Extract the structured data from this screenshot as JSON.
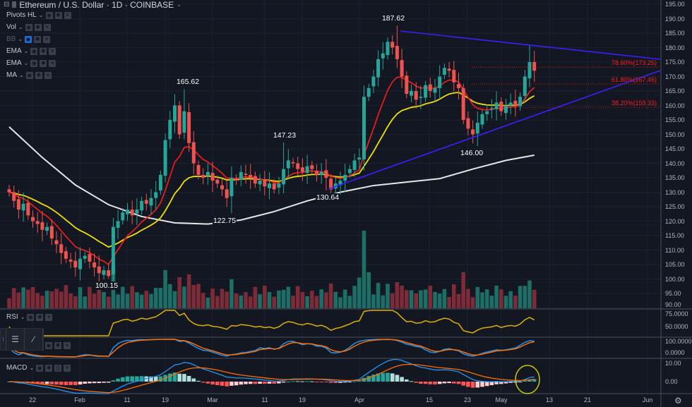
{
  "header": {
    "symbol_title": "Ethereum / U.S. Dollar · 1D · COINBASE",
    "indicators": [
      {
        "label": "Pivots HL",
        "hidden": false
      },
      {
        "label": "Vol",
        "hidden": false
      },
      {
        "label": "BB",
        "hidden": true
      },
      {
        "label": "EMA",
        "hidden": false
      },
      {
        "label": "EMA",
        "hidden": false
      },
      {
        "label": "MA",
        "hidden": false
      }
    ]
  },
  "panels": {
    "rsi_label": "RSI",
    "macd_label": "MACD"
  },
  "colors": {
    "background": "#131722",
    "up": "#26a69a",
    "down": "#ef5350",
    "ema_fast": "#e31e1e",
    "ema_slow": "#f0e000",
    "ma": "#e6e6e6",
    "trendline": "#3b1fff",
    "fib": "#ff1a1a",
    "highlight_circle": "#c8c800"
  },
  "chart_data": {
    "type": "candlestick",
    "start_date": "Jan 17",
    "closes": [
      130,
      127,
      124,
      126,
      122,
      120,
      119,
      117,
      118,
      114,
      112,
      109,
      107,
      106,
      104,
      107,
      108,
      106,
      104,
      102,
      103,
      101,
      118,
      120,
      123,
      124,
      122,
      124,
      127,
      126,
      128,
      130,
      136,
      148,
      155,
      160,
      150,
      158,
      147,
      140,
      136,
      135,
      137,
      134,
      133,
      131,
      128,
      135,
      134,
      137,
      136,
      135,
      133,
      134,
      132,
      133,
      131,
      133,
      138,
      141,
      140,
      138,
      137,
      139,
      138,
      136,
      137,
      135,
      131,
      133,
      134,
      136,
      138,
      141,
      142,
      163,
      166,
      170,
      176,
      178,
      182,
      180,
      176,
      170,
      164,
      165,
      162,
      163,
      167,
      165,
      166,
      170,
      173,
      172,
      168,
      166,
      155,
      152,
      150,
      154,
      157,
      158,
      159,
      161,
      158,
      160,
      161,
      160,
      163,
      170,
      175,
      172
    ],
    "ma_samples_every_7_days": [
      152.6,
      142,
      132.5,
      125.7,
      121.6,
      119.4,
      119,
      120.4,
      123.3,
      127,
      130,
      132.3,
      133.5,
      134.7,
      138,
      141,
      142.8
    ],
    "pivots": [
      {
        "label": "165.62",
        "type": "high"
      },
      {
        "label": "147.23",
        "type": "high"
      },
      {
        "label": "187.62",
        "type": "high"
      },
      {
        "label": "130.64",
        "type": "low"
      },
      {
        "label": "122.75",
        "type": "low"
      },
      {
        "label": "100.15",
        "type": "low"
      },
      {
        "label": "146.00",
        "type": "low"
      }
    ],
    "fib_levels": [
      {
        "label": "78.60%(173.25)",
        "value": 173.25
      },
      {
        "label": "61.80%(167.46)",
        "value": 167.46
      },
      {
        "label": "38.20%(159.33)",
        "value": 159.33
      }
    ],
    "trendlines": [
      {
        "from": [
          "Apr 8",
          185.5
        ],
        "to": [
          "Jun 1",
          175.8
        ]
      },
      {
        "from": [
          "Mar 25",
          131
        ],
        "to": [
          "Jun 1",
          171.5
        ]
      }
    ],
    "price_axis": [
      "195.00",
      "190.00",
      "185.00",
      "180.00",
      "175.00",
      "170.00",
      "165.00",
      "160.00",
      "155.00",
      "150.00",
      "145.00",
      "140.00",
      "135.00",
      "130.00",
      "125.00",
      "120.00",
      "115.00",
      "110.00",
      "105.00",
      "100.00",
      "95.00",
      "90.00"
    ],
    "rsi_axis": [
      "75.0000",
      "50.0000"
    ],
    "stoch_axis": [
      "100.0000",
      "0.0000"
    ],
    "macd_axis": [
      "10.00",
      "0.00"
    ],
    "time_axis": [
      "22",
      "Feb",
      "11",
      "19",
      "Mar",
      "11",
      "19",
      "Apr",
      "15",
      "23",
      "May",
      "13",
      "21",
      "Jun"
    ]
  }
}
